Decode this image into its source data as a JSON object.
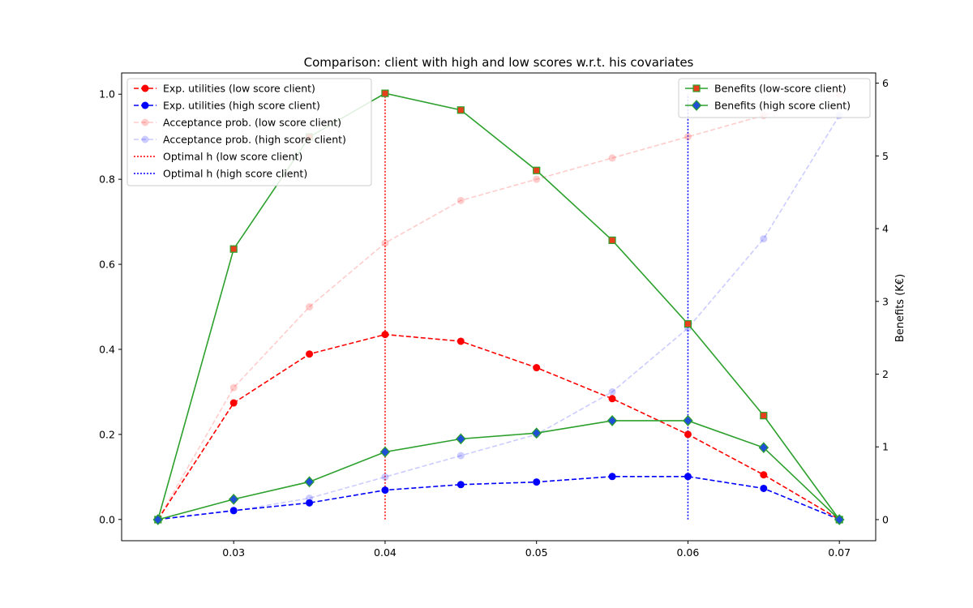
{
  "chart_data": {
    "type": "line",
    "title": "Comparison: client with high and low scores w.r.t. his covariates",
    "xlabel": "",
    "ylabel_left": "",
    "ylabel_right": "Benefits (K€)",
    "x": [
      0.025,
      0.03,
      0.035,
      0.04,
      0.045,
      0.05,
      0.055,
      0.06,
      0.065,
      0.07
    ],
    "xlim": [
      0.0226,
      0.0724
    ],
    "ylim_left": [
      -0.05,
      1.05
    ],
    "ylim_right": [
      -0.29,
      6.14
    ],
    "x_ticks": [
      "0.03",
      "0.04",
      "0.05",
      "0.06",
      "0.07"
    ],
    "x_tick_values": [
      0.03,
      0.04,
      0.05,
      0.06,
      0.07
    ],
    "y_left_ticks": [
      "0.0",
      "0.2",
      "0.4",
      "0.6",
      "0.8",
      "1.0"
    ],
    "y_left_tick_values": [
      0,
      0.2,
      0.4,
      0.6,
      0.8,
      1.0
    ],
    "y_right_ticks": [
      "0",
      "1",
      "2",
      "3",
      "4",
      "5",
      "6"
    ],
    "y_right_tick_values": [
      0,
      1,
      2,
      3,
      4,
      5,
      6
    ],
    "grid": false,
    "series": [
      {
        "name": "Exp. utilities (low score client)",
        "axis": "left",
        "color": "#ff0000",
        "style": "dashed",
        "marker": "circle",
        "opacity": 1,
        "values": [
          0.0,
          0.274,
          0.389,
          0.435,
          0.419,
          0.357,
          0.284,
          0.2,
          0.105,
          0.0
        ]
      },
      {
        "name": "Exp. utilities (high score client)",
        "axis": "left",
        "color": "#0000ff",
        "style": "dashed",
        "marker": "circle",
        "opacity": 1,
        "values": [
          0.0,
          0.021,
          0.039,
          0.069,
          0.082,
          0.088,
          0.101,
          0.101,
          0.073,
          0.0
        ]
      },
      {
        "name": "Acceptance prob. (low score client)",
        "axis": "left",
        "color": "#ff0000",
        "style": "dashed",
        "marker": "circle",
        "opacity": 0.2,
        "values": [
          0.0,
          0.31,
          0.5,
          0.65,
          0.75,
          0.8,
          0.85,
          0.9,
          0.95,
          1.0
        ]
      },
      {
        "name": "Acceptance prob. (high score client)",
        "axis": "left",
        "color": "#0000ff",
        "style": "dashed",
        "marker": "circle",
        "opacity": 0.2,
        "values": [
          0.0,
          0.02,
          0.05,
          0.1,
          0.15,
          0.2,
          0.3,
          0.45,
          0.66,
          0.95
        ]
      },
      {
        "name": "Benefits (low-score client)",
        "axis": "right",
        "color": "#2ca02c",
        "style": "solid",
        "marker": "square",
        "marker_fill": "#e8401c",
        "opacity": 1,
        "values": [
          0.0,
          3.72,
          5.26,
          5.86,
          5.63,
          4.8,
          3.84,
          2.69,
          1.43,
          0.0
        ]
      },
      {
        "name": "Benefits (high score client)",
        "axis": "right",
        "color": "#2ca02c",
        "style": "solid",
        "marker": "diamond",
        "marker_fill": "#1f4fd6",
        "opacity": 1,
        "values": [
          0.0,
          0.28,
          0.52,
          0.93,
          1.11,
          1.19,
          1.36,
          1.36,
          0.99,
          0.0
        ]
      }
    ],
    "vlines": [
      {
        "name": "Optimal h (low score client)",
        "x": 0.04,
        "color": "#ff0000",
        "style": "dotted",
        "ymin": 0.0,
        "ymax": 1.0
      },
      {
        "name": "Optimal h (high score client)",
        "x": 0.06,
        "color": "#0000ff",
        "style": "dotted",
        "ymin": 0.0,
        "ymax": 1.0
      }
    ],
    "legend_left_placement": "top-left",
    "legend_right_placement": "top-right"
  }
}
